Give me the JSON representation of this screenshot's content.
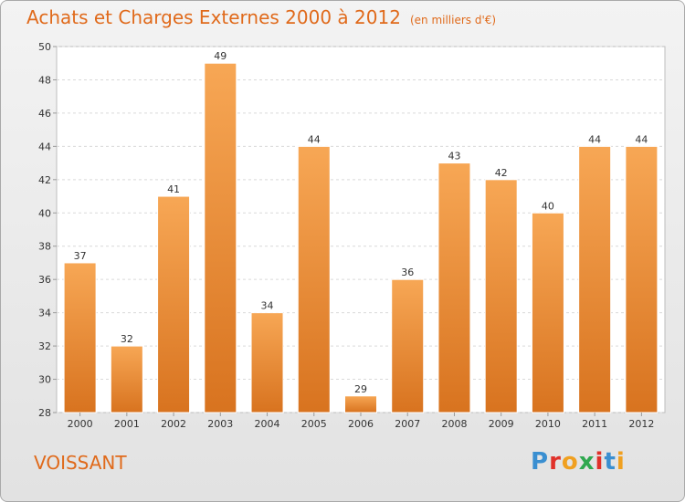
{
  "chart_data": {
    "type": "bar",
    "title": "Achats et Charges Externes 2000 à 2012",
    "subtitle": "(en milliers d'€)",
    "categories": [
      "2000",
      "2001",
      "2002",
      "2003",
      "2004",
      "2005",
      "2006",
      "2007",
      "2008",
      "2009",
      "2010",
      "2011",
      "2012"
    ],
    "values": [
      37,
      32,
      41,
      49,
      34,
      44,
      29,
      36,
      43,
      42,
      40,
      44,
      44
    ],
    "ylim": [
      28,
      50
    ],
    "yticks": [
      28,
      30,
      32,
      34,
      36,
      38,
      40,
      42,
      44,
      46,
      48,
      50
    ],
    "grid": true,
    "bar_color_top": "#f7a755",
    "bar_color_bottom": "#d8731f"
  },
  "footer": {
    "city": "VOISSANT",
    "logo": "Proxiti"
  },
  "colors": {
    "title": "#e06a1b"
  }
}
